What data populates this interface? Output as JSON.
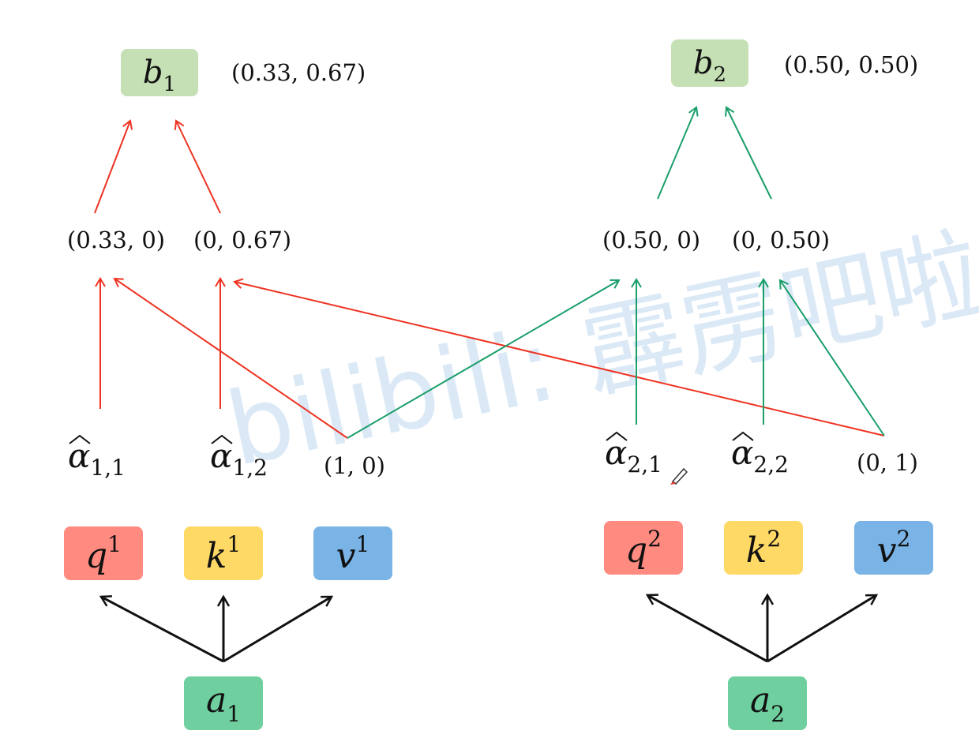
{
  "watermark": "bilibili: 霹雳吧啦",
  "outputs": {
    "b1": {
      "sym": "b",
      "sub": "1",
      "value": "(0.33, 0.67)"
    },
    "b2": {
      "sym": "b",
      "sub": "2",
      "value": "(0.50, 0.50)"
    }
  },
  "weighted": {
    "w11": "(0.33, 0)",
    "w12": "(0, 0.67)",
    "w21": "(0.50, 0)",
    "w22": "(0, 0.50)"
  },
  "alphas": {
    "a11": {
      "sym": "α",
      "sub": "1,1"
    },
    "a12": {
      "sym": "α",
      "sub": "1,2"
    },
    "a21": {
      "sym": "α",
      "sub": "2,1"
    },
    "a22": {
      "sym": "α",
      "sub": "2,2"
    }
  },
  "values": {
    "v1": "(1, 0)",
    "v2": "(0, 1)"
  },
  "qkv": {
    "q1": {
      "sym": "q",
      "sup": "1"
    },
    "k1": {
      "sym": "k",
      "sup": "1"
    },
    "v1": {
      "sym": "v",
      "sup": "1"
    },
    "q2": {
      "sym": "q",
      "sup": "2"
    },
    "k2": {
      "sym": "k",
      "sup": "2"
    },
    "v2": {
      "sym": "v",
      "sup": "2"
    }
  },
  "inputs": {
    "a1": {
      "sym": "a",
      "sub": "1"
    },
    "a2": {
      "sym": "a",
      "sub": "2"
    }
  },
  "colors": {
    "red": "#ee3322",
    "green": "#1a9e6a",
    "black": "#111111",
    "b_box": "#c5e0b4",
    "q_box": "#ff8a80",
    "k_box": "#ffd966",
    "v_box": "#7ab3e6",
    "a_box": "#6fcf9f"
  }
}
